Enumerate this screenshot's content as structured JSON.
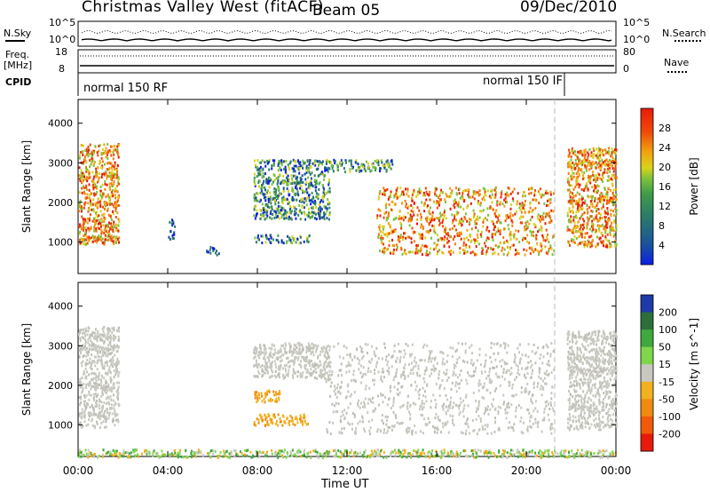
{
  "header": {
    "title": "Christmas Valley West (fitACF)",
    "beam": "Beam 05",
    "date": "09/Dec/2010"
  },
  "status_panel": {
    "nsky_label": "N.Sky",
    "nsky_ticks": [
      "10^5",
      "10^0"
    ],
    "nsearch_label": "N.Search",
    "nsearch_ticks": [
      "10^5",
      "10^0"
    ],
    "freq_label_1": "Freq.",
    "freq_label_2": "[MHz]",
    "freq_ticks": [
      "18",
      "8"
    ],
    "nave_label": "Nave",
    "nave_ticks": [
      "80",
      "0"
    ],
    "cpid_label": "CPID",
    "cpid_segments": [
      "normal 150 RF",
      "normal 150 IF"
    ]
  },
  "chart_data": [
    {
      "type": "heatmap",
      "title": "",
      "xlabel": "",
      "ylabel": "Slant Range [km]",
      "xlim": [
        "00:00",
        "24:00"
      ],
      "ylim": [
        200,
        4600
      ],
      "yticks": [
        "1000",
        "2000",
        "3000",
        "4000"
      ],
      "colorbar": {
        "label": "Power [dB]",
        "ticks": [
          "28",
          "24",
          "20",
          "16",
          "12",
          "8",
          "4"
        ],
        "colors": [
          "#0a1ee6",
          "#1a4fa0",
          "#2a7a6a",
          "#3f9a4a",
          "#7cc23a",
          "#d9d31a",
          "#f1a30e",
          "#f27a0b",
          "#f04a08",
          "#e81a0a"
        ]
      },
      "regions": [
        {
          "t": [
            0.0,
            1.8
          ],
          "r": [
            950,
            3500
          ],
          "level": "high"
        },
        {
          "t": [
            4.0,
            4.3
          ],
          "r": [
            1100,
            1600
          ],
          "level": "low"
        },
        {
          "t": [
            5.7,
            6.3
          ],
          "r": [
            700,
            900
          ],
          "level": "low"
        },
        {
          "t": [
            7.8,
            10.3
          ],
          "r": [
            1000,
            1200
          ],
          "level": "medium"
        },
        {
          "t": [
            7.8,
            11.2
          ],
          "r": [
            1600,
            3100
          ],
          "level": "medium"
        },
        {
          "t": [
            11.0,
            14.0
          ],
          "r": [
            2800,
            3100
          ],
          "level": "medium"
        },
        {
          "t": [
            13.3,
            21.2
          ],
          "r": [
            700,
            2400
          ],
          "level": "high"
        },
        {
          "t": [
            21.8,
            24.0
          ],
          "r": [
            900,
            3400
          ],
          "level": "high"
        }
      ]
    },
    {
      "type": "heatmap",
      "title": "",
      "xlabel": "Time UT",
      "ylabel": "Slant Range [km]",
      "xlim": [
        "00:00",
        "24:00"
      ],
      "ylim": [
        200,
        4600
      ],
      "xticks": [
        "00:00",
        "04:00",
        "08:00",
        "12:00",
        "16:00",
        "20:00",
        "00:00"
      ],
      "yticks": [
        "1000",
        "2000",
        "3000",
        "4000"
      ],
      "colorbar": {
        "label": "Velocity [m s^-1]",
        "ticks": [
          "200",
          "100",
          "50",
          "15",
          "-15",
          "-50",
          "-100",
          "-200"
        ],
        "colors": [
          "#1f3aa8",
          "#2c6f3a",
          "#3fa83f",
          "#7fd64a",
          "#c8c8c0",
          "#f0b020",
          "#f08a10",
          "#f05a0a",
          "#e81a0a"
        ]
      },
      "regions": [
        {
          "t": [
            0.0,
            1.8
          ],
          "r": [
            950,
            3500
          ],
          "level": "ground"
        },
        {
          "t": [
            7.8,
            10.3
          ],
          "r": [
            1000,
            1300
          ],
          "level": "negative"
        },
        {
          "t": [
            7.8,
            9.0
          ],
          "r": [
            1600,
            1900
          ],
          "level": "negative"
        },
        {
          "t": [
            7.8,
            11.2
          ],
          "r": [
            2200,
            3100
          ],
          "level": "ground"
        },
        {
          "t": [
            11.0,
            21.2
          ],
          "r": [
            800,
            3100
          ],
          "level": "ground"
        },
        {
          "t": [
            21.8,
            24.0
          ],
          "r": [
            900,
            3400
          ],
          "level": "ground"
        },
        {
          "t": [
            0.0,
            24.0
          ],
          "r": [
            200,
            400
          ],
          "level": "mixed"
        }
      ]
    }
  ]
}
